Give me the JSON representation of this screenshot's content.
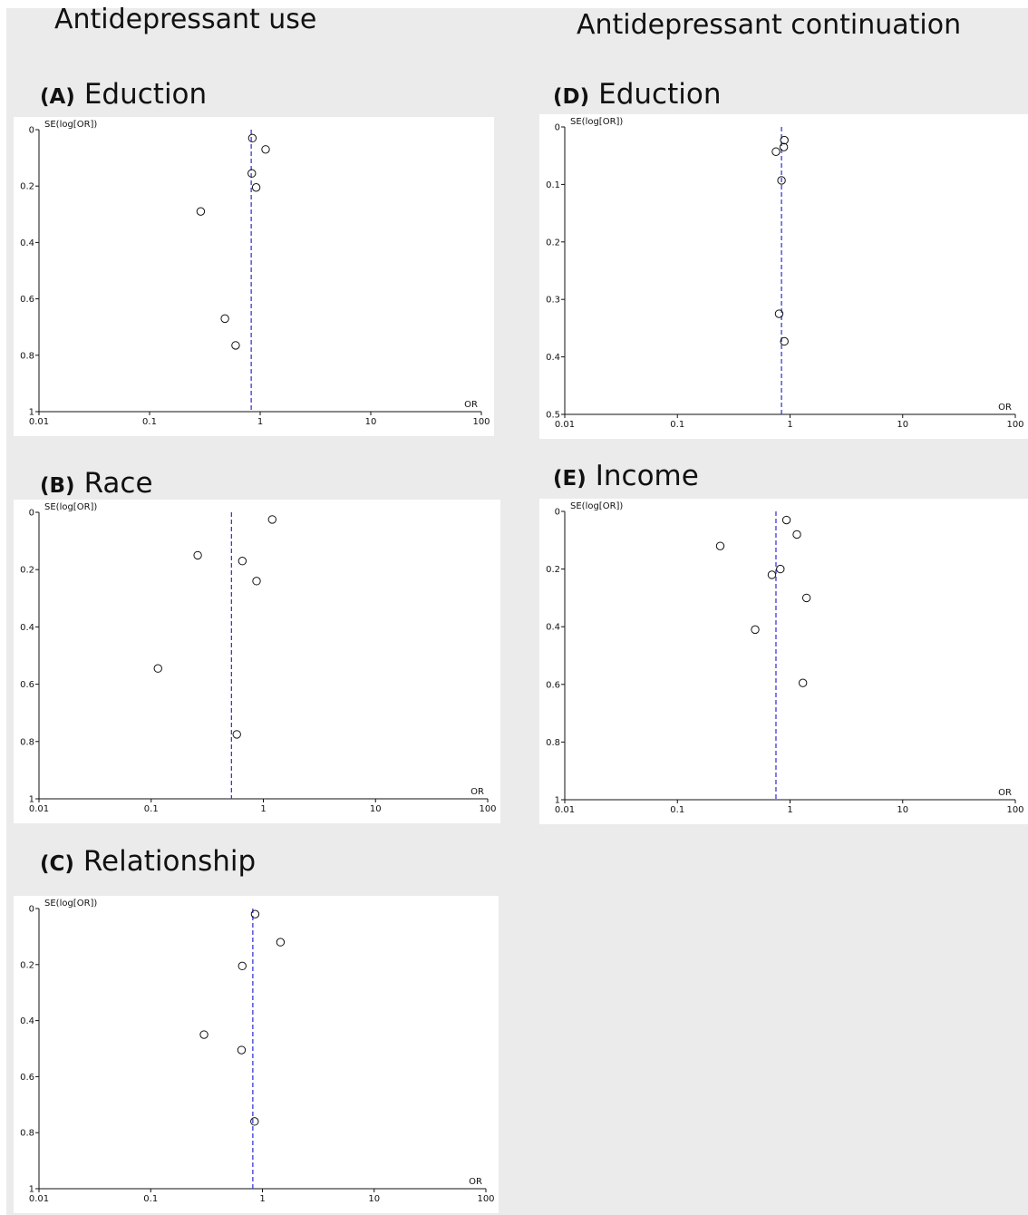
{
  "titles": {
    "left_column": "Antidepressant use",
    "right_column": "Antidepressant continuation"
  },
  "colors": {
    "background": "#ebebeb",
    "plot_background": "#ffffff",
    "axis": "#111111",
    "reference_line": "#3a3ad6",
    "marker": "#111111"
  },
  "chart_data": [
    {
      "id": "A",
      "type": "scatter",
      "subtype": "funnel-plot",
      "panel_label": "(A)",
      "title": "Eduction",
      "ylabel": "SE(log[OR])",
      "xlabel": "OR",
      "x_scale": "log",
      "xlim": [
        0.01,
        100
      ],
      "x_ticks": [
        0.01,
        0.1,
        1,
        10,
        100
      ],
      "x_tick_labels": [
        "0.01",
        "0.1",
        "1",
        "10",
        "100"
      ],
      "ylim": [
        0,
        1
      ],
      "y_inverted": true,
      "y_ticks": [
        0,
        0.2,
        0.4,
        0.6,
        0.8,
        1
      ],
      "y_tick_labels": [
        "0",
        "0.2",
        "0.4",
        "0.6",
        "0.8",
        "1"
      ],
      "reference_or": 0.83,
      "points": [
        {
          "or": 0.85,
          "se": 0.03
        },
        {
          "or": 1.12,
          "se": 0.07
        },
        {
          "or": 0.84,
          "se": 0.155
        },
        {
          "or": 0.92,
          "se": 0.205
        },
        {
          "or": 0.29,
          "se": 0.29
        },
        {
          "or": 0.48,
          "se": 0.67
        },
        {
          "or": 0.6,
          "se": 0.765
        }
      ]
    },
    {
      "id": "B",
      "type": "scatter",
      "subtype": "funnel-plot",
      "panel_label": "(B)",
      "title": "Race",
      "ylabel": "SE(log[OR])",
      "xlabel": "OR",
      "x_scale": "log",
      "xlim": [
        0.01,
        100
      ],
      "x_ticks": [
        0.01,
        0.1,
        1,
        10,
        100
      ],
      "x_tick_labels": [
        "0.01",
        "0.1",
        "1",
        "10",
        "100"
      ],
      "ylim": [
        0,
        1
      ],
      "y_inverted": true,
      "y_ticks": [
        0,
        0.2,
        0.4,
        0.6,
        0.8,
        1
      ],
      "y_tick_labels": [
        "0",
        "0.2",
        "0.4",
        "0.6",
        "0.8",
        "1"
      ],
      "reference_or": 0.52,
      "points": [
        {
          "or": 1.2,
          "se": 0.025
        },
        {
          "or": 0.26,
          "se": 0.15
        },
        {
          "or": 0.65,
          "se": 0.17
        },
        {
          "or": 0.87,
          "se": 0.24
        },
        {
          "or": 0.115,
          "se": 0.545
        },
        {
          "or": 0.58,
          "se": 0.775
        }
      ]
    },
    {
      "id": "C",
      "type": "scatter",
      "subtype": "funnel-plot",
      "panel_label": "(C)",
      "title": "Relationship",
      "ylabel": "SE(log[OR])",
      "xlabel": "OR",
      "x_scale": "log",
      "xlim": [
        0.01,
        100
      ],
      "x_ticks": [
        0.01,
        0.1,
        1,
        10,
        100
      ],
      "x_tick_labels": [
        "0.01",
        "0.1",
        "1",
        "10",
        "100"
      ],
      "ylim": [
        0,
        1
      ],
      "y_inverted": true,
      "y_ticks": [
        0,
        0.2,
        0.4,
        0.6,
        0.8,
        1
      ],
      "y_tick_labels": [
        "0",
        "0.2",
        "0.4",
        "0.6",
        "0.8",
        "1"
      ],
      "reference_or": 0.82,
      "points": [
        {
          "or": 0.86,
          "se": 0.02
        },
        {
          "or": 1.45,
          "se": 0.12
        },
        {
          "or": 0.66,
          "se": 0.205
        },
        {
          "or": 0.3,
          "se": 0.45
        },
        {
          "or": 0.65,
          "se": 0.505
        },
        {
          "or": 0.85,
          "se": 0.76
        }
      ]
    },
    {
      "id": "D",
      "type": "scatter",
      "subtype": "funnel-plot",
      "panel_label": "(D)",
      "title": "Eduction",
      "ylabel": "SE(log[OR])",
      "xlabel": "OR",
      "x_scale": "log",
      "xlim": [
        0.01,
        100
      ],
      "x_ticks": [
        0.01,
        0.1,
        1,
        10,
        100
      ],
      "x_tick_labels": [
        "0.01",
        "0.1",
        "1",
        "10",
        "100"
      ],
      "ylim": [
        0,
        0.5
      ],
      "y_inverted": true,
      "y_ticks": [
        0,
        0.1,
        0.2,
        0.3,
        0.4,
        0.5
      ],
      "y_tick_labels": [
        "0",
        "0.1",
        "0.2",
        "0.3",
        "0.4",
        "0.5"
      ],
      "reference_or": 0.84,
      "points": [
        {
          "or": 0.89,
          "se": 0.023
        },
        {
          "or": 0.88,
          "se": 0.035
        },
        {
          "or": 0.75,
          "se": 0.043
        },
        {
          "or": 0.84,
          "se": 0.093
        },
        {
          "or": 0.8,
          "se": 0.325
        },
        {
          "or": 0.89,
          "se": 0.373
        }
      ]
    },
    {
      "id": "E",
      "type": "scatter",
      "subtype": "funnel-plot",
      "panel_label": "(E)",
      "title": "Income",
      "ylabel": "SE(log[OR])",
      "xlabel": "OR",
      "x_scale": "log",
      "xlim": [
        0.01,
        100
      ],
      "x_ticks": [
        0.01,
        0.1,
        1,
        10,
        100
      ],
      "x_tick_labels": [
        "0.01",
        "0.1",
        "1",
        "10",
        "100"
      ],
      "ylim": [
        0,
        1
      ],
      "y_inverted": true,
      "y_ticks": [
        0,
        0.2,
        0.4,
        0.6,
        0.8,
        1
      ],
      "y_tick_labels": [
        "0",
        "0.2",
        "0.4",
        "0.6",
        "0.8",
        "1"
      ],
      "reference_or": 0.75,
      "points": [
        {
          "or": 0.93,
          "se": 0.03
        },
        {
          "or": 1.15,
          "se": 0.08
        },
        {
          "or": 0.24,
          "se": 0.12
        },
        {
          "or": 0.82,
          "se": 0.2
        },
        {
          "or": 0.69,
          "se": 0.22
        },
        {
          "or": 1.4,
          "se": 0.3
        },
        {
          "or": 0.49,
          "se": 0.41
        },
        {
          "or": 1.3,
          "se": 0.595
        }
      ]
    }
  ]
}
